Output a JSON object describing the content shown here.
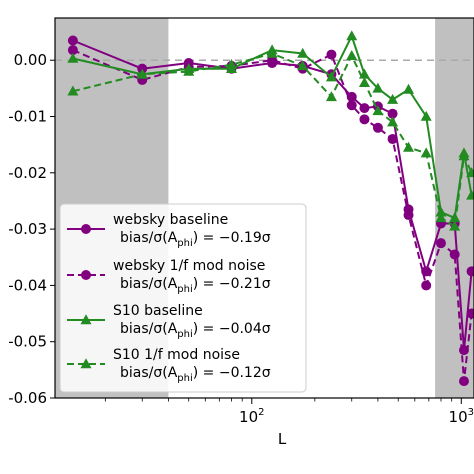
{
  "chart_data": {
    "type": "line",
    "xlabel": "L",
    "ylabel": "",
    "xscale": "log",
    "xlim": [
      11.5,
      1150
    ],
    "ylim": [
      -0.06,
      0.0075
    ],
    "x_tick_labels": [
      {
        "value": 100,
        "base": "10",
        "exp": "2"
      },
      {
        "value": 1000,
        "base": "10",
        "exp": "3"
      }
    ],
    "y_ticks": [
      0.0,
      -0.01,
      -0.02,
      -0.03,
      -0.04,
      -0.05,
      -0.06
    ],
    "y_tick_labels": [
      "0.00",
      "-0.01",
      "-0.02",
      "-0.03",
      "-0.04",
      "-0.05",
      "-0.06"
    ],
    "reference_line": {
      "y": 0.0,
      "color": "#aaaaaa",
      "style": "dashed"
    },
    "shaded_regions": [
      {
        "x0": 11.5,
        "x1": 40,
        "color": "#c0c0c0"
      },
      {
        "x0": 750,
        "x1": 1150,
        "color": "#c0c0c0"
      }
    ],
    "legend_position": "lower-left",
    "series": [
      {
        "name_line1": "websky baseline",
        "name_line2": "bias/σ(A",
        "name_sub": "phi",
        "name_line2_end": ") = −0.19σ",
        "color": "#800080",
        "marker": "circle",
        "linestyle": "solid",
        "x": [
          14,
          30,
          50,
          80,
          125,
          175,
          240,
          300,
          345,
          400,
          470,
          560,
          680,
          800,
          930,
          1030,
          1120
        ],
        "y": [
          0.0035,
          -0.0015,
          -0.0005,
          -0.0015,
          -0.0005,
          -0.001,
          -0.0025,
          -0.0065,
          -0.0085,
          -0.0082,
          -0.0095,
          -0.0265,
          -0.0375,
          -0.029,
          -0.029,
          -0.0515,
          -0.0375
        ]
      },
      {
        "name_line1": "websky 1/f mod noise",
        "name_line2": "bias/σ(A",
        "name_sub": "phi",
        "name_line2_end": ") = −0.21σ",
        "color": "#800080",
        "marker": "circle",
        "linestyle": "dashed",
        "x": [
          14,
          30,
          50,
          80,
          125,
          175,
          240,
          300,
          345,
          400,
          470,
          560,
          680,
          800,
          930,
          1030,
          1120
        ],
        "y": [
          0.0018,
          -0.0035,
          -0.0012,
          -0.001,
          0.0,
          -0.0015,
          0.001,
          -0.008,
          -0.0105,
          -0.012,
          -0.014,
          -0.0275,
          -0.04,
          -0.0325,
          -0.0345,
          -0.057,
          -0.045
        ]
      },
      {
        "name_line1": "S10 baseline",
        "name_line2": "bias/σ(A",
        "name_sub": "phi",
        "name_line2_end": ") = −0.04σ",
        "color": "#228b22",
        "marker": "triangle",
        "linestyle": "solid",
        "x": [
          14,
          30,
          50,
          80,
          125,
          175,
          240,
          300,
          345,
          400,
          470,
          560,
          680,
          800,
          930,
          1030,
          1120
        ],
        "y": [
          0.0003,
          -0.0025,
          -0.0015,
          -0.0015,
          0.0018,
          0.0012,
          -0.003,
          0.0043,
          -0.0025,
          -0.005,
          -0.007,
          -0.0052,
          -0.01,
          -0.027,
          -0.028,
          -0.0165,
          -0.024
        ]
      },
      {
        "name_line1": "S10 1/f mod noise",
        "name_line2": "bias/σ(A",
        "name_sub": "phi",
        "name_line2_end": ") = −0.12σ",
        "color": "#228b22",
        "marker": "triangle",
        "linestyle": "dashed",
        "x": [
          14,
          30,
          50,
          80,
          125,
          175,
          240,
          300,
          345,
          400,
          470,
          560,
          680,
          800,
          930,
          1030,
          1120
        ],
        "y": [
          -0.0055,
          -0.0025,
          -0.002,
          -0.0008,
          0.0012,
          -0.001,
          -0.0065,
          0.0008,
          -0.004,
          -0.009,
          -0.011,
          -0.0155,
          -0.0165,
          -0.028,
          -0.0295,
          -0.017,
          -0.02
        ]
      }
    ]
  }
}
